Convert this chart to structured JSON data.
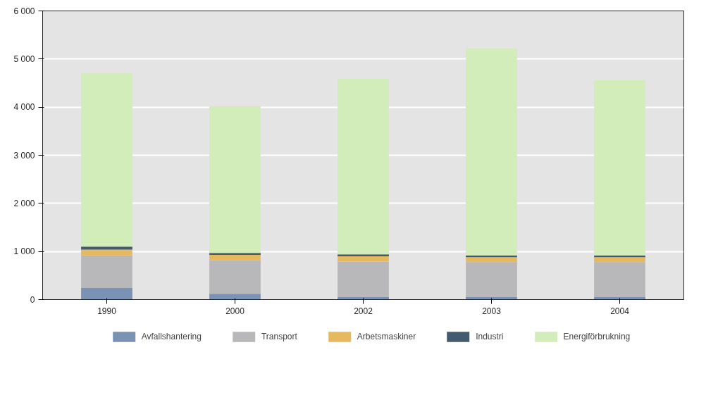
{
  "chart_data": {
    "type": "bar",
    "stacked": true,
    "categories": [
      "1990",
      "2000",
      "2002",
      "2003",
      "2004"
    ],
    "series": [
      {
        "name": "Avfallshantering",
        "color": "#7a93b4",
        "values": [
          240,
          120,
          60,
          60,
          60
        ]
      },
      {
        "name": "Transport",
        "color": "#b8b7ba",
        "values": [
          680,
          700,
          730,
          720,
          720
        ]
      },
      {
        "name": "Arbetsmaskiner",
        "color": "#e6b95f",
        "values": [
          120,
          110,
          110,
          100,
          100
        ]
      },
      {
        "name": "Industri",
        "color": "#445a6e",
        "values": [
          60,
          40,
          40,
          40,
          40
        ]
      },
      {
        "name": "Energiförbrukning",
        "color": "#d2edb9",
        "values": [
          3610,
          3050,
          3650,
          4300,
          3640
        ]
      }
    ],
    "ylim": [
      0,
      6000
    ],
    "yticks": [
      {
        "value": 0,
        "label": "0"
      },
      {
        "value": 1000,
        "label": "1 000"
      },
      {
        "value": 2000,
        "label": "2 000"
      },
      {
        "value": 3000,
        "label": "3 000"
      },
      {
        "value": 4000,
        "label": "4 000"
      },
      {
        "value": 5000,
        "label": "5 000"
      },
      {
        "value": 6000,
        "label": "6 000"
      }
    ],
    "grid": "y",
    "legend": "bottom"
  }
}
